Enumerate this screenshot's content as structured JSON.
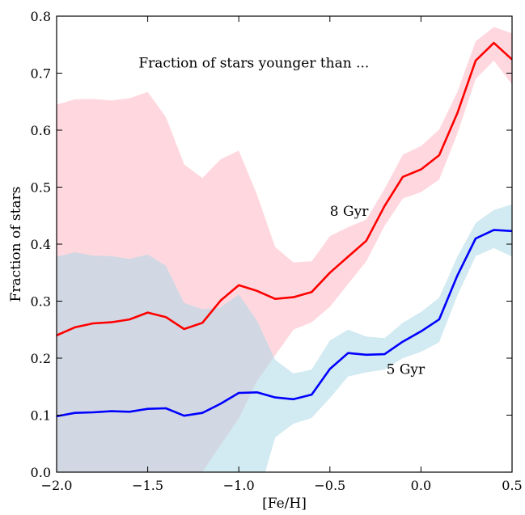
{
  "chart_data": {
    "type": "line",
    "title": "Fraction of stars younger than ...",
    "xlabel": "[Fe/H]",
    "ylabel": "Fraction of stars",
    "xlim": [
      -2.0,
      0.5
    ],
    "ylim": [
      0.0,
      0.8
    ],
    "x_ticks": [
      -2.0,
      -1.5,
      -1.0,
      -0.5,
      0.0,
      0.5
    ],
    "x_tick_labels": [
      "−2.0",
      "−1.5",
      "−1.0",
      "−0.5",
      "0.0",
      "0.5"
    ],
    "y_ticks": [
      0.0,
      0.1,
      0.2,
      0.3,
      0.4,
      0.5,
      0.6,
      0.7,
      0.8
    ],
    "y_tick_labels": [
      "0.0",
      "0.1",
      "0.2",
      "0.3",
      "0.4",
      "0.5",
      "0.6",
      "0.7",
      "0.8"
    ],
    "grid": false,
    "x": [
      -2.0,
      -1.9,
      -1.8,
      -1.7,
      -1.6,
      -1.5,
      -1.4,
      -1.3,
      -1.2,
      -1.1,
      -1.0,
      -0.9,
      -0.8,
      -0.7,
      -0.6,
      -0.5,
      -0.4,
      -0.3,
      -0.2,
      -0.1,
      0.0,
      0.1,
      0.2,
      0.3,
      0.4,
      0.5
    ],
    "series": [
      {
        "name": "8 Gyr",
        "color": "#ff0000",
        "band_color": "#ffc0cb",
        "values": [
          0.24,
          0.254,
          0.261,
          0.263,
          0.268,
          0.28,
          0.272,
          0.251,
          0.262,
          0.301,
          0.328,
          0.318,
          0.304,
          0.307,
          0.316,
          0.35,
          0.378,
          0.406,
          0.467,
          0.518,
          0.531,
          0.556,
          0.63,
          0.722,
          0.753,
          0.724
        ],
        "band_upper": [
          0.645,
          0.654,
          0.655,
          0.652,
          0.656,
          0.667,
          0.623,
          0.54,
          0.516,
          0.549,
          0.564,
          0.487,
          0.395,
          0.368,
          0.37,
          0.414,
          0.43,
          0.443,
          0.497,
          0.557,
          0.572,
          0.601,
          0.667,
          0.756,
          0.781,
          0.77
        ],
        "band_lower": [
          -0.05,
          -0.05,
          -0.05,
          -0.05,
          -0.05,
          -0.05,
          -0.05,
          -0.05,
          0.0,
          0.048,
          0.094,
          0.16,
          0.205,
          0.25,
          0.263,
          0.29,
          0.33,
          0.37,
          0.432,
          0.48,
          0.491,
          0.513,
          0.594,
          0.69,
          0.722,
          0.68
        ]
      },
      {
        "name": "5 Gyr",
        "color": "#0000ff",
        "band_color": "#add8e6",
        "values": [
          0.098,
          0.104,
          0.105,
          0.107,
          0.106,
          0.111,
          0.112,
          0.099,
          0.104,
          0.12,
          0.139,
          0.14,
          0.131,
          0.128,
          0.136,
          0.181,
          0.209,
          0.206,
          0.207,
          0.229,
          0.247,
          0.268,
          0.345,
          0.41,
          0.425,
          0.423
        ],
        "band_upper": [
          0.378,
          0.386,
          0.38,
          0.379,
          0.374,
          0.382,
          0.362,
          0.297,
          0.286,
          0.289,
          0.312,
          0.266,
          0.197,
          0.173,
          0.18,
          0.231,
          0.25,
          0.238,
          0.235,
          0.262,
          0.281,
          0.306,
          0.378,
          0.437,
          0.46,
          0.47
        ],
        "band_lower": [
          -0.05,
          -0.05,
          -0.05,
          -0.05,
          -0.05,
          -0.05,
          -0.05,
          -0.05,
          -0.05,
          -0.05,
          -0.05,
          -0.05,
          0.061,
          0.085,
          0.095,
          0.13,
          0.168,
          0.175,
          0.18,
          0.2,
          0.211,
          0.228,
          0.31,
          0.379,
          0.393,
          0.378
        ]
      }
    ],
    "annotations": [
      {
        "text": "Fraction of stars younger than ...",
        "x": -1.55,
        "y": 0.71
      },
      {
        "text": "8 Gyr",
        "x": -0.5,
        "y": 0.45
      },
      {
        "text": "5 Gyr",
        "x": -0.19,
        "y": 0.172
      }
    ]
  }
}
